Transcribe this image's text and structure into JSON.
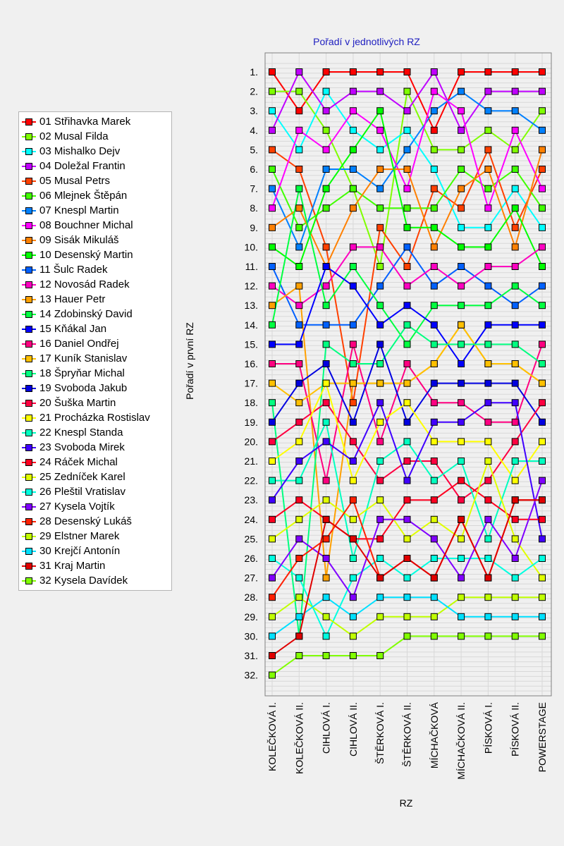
{
  "chart_data": {
    "type": "line",
    "title": "Pořadí v jednotlivých RZ",
    "xlabel": "RZ",
    "ylabel": "Pořadí v první RZ",
    "categories": [
      "KOLEČKOVÁ I.",
      "KOLEČKOVÁ II.",
      "CIHLOVÁ I.",
      "CIHLOVÁ II.",
      "ŠTĚRKOVÁ I.",
      "ŠTĚRKOVÁ II.",
      "MÍCHAČKOVÁ",
      "MÍCHAČKOVÁ II.",
      "PÍSKOVÁ I.",
      "PÍSKOVÁ II.",
      "POWERSTAGE"
    ],
    "y_ticks": [
      "1.",
      "2.",
      "3.",
      "4.",
      "5.",
      "6.",
      "7.",
      "8.",
      "9.",
      "10.",
      "11.",
      "12.",
      "13.",
      "14.",
      "15.",
      "16.",
      "17.",
      "18.",
      "19.",
      "20.",
      "21.",
      "22.",
      "23.",
      "24.",
      "25.",
      "26.",
      "27.",
      "28.",
      "29.",
      "30.",
      "31.",
      "32."
    ],
    "ylim": [
      1,
      32
    ],
    "y_inverted": true,
    "grid": true,
    "legend_position": "left",
    "series": [
      {
        "name": "01 Střihavka Marek",
        "color": "#ff0000",
        "values": [
          1,
          3,
          1,
          1,
          1,
          1,
          4,
          1,
          1,
          1,
          1
        ]
      },
      {
        "name": "02 Musal Filda",
        "color": "#7fff00",
        "values": [
          2,
          2,
          4,
          7,
          11,
          2,
          5,
          5,
          4,
          5,
          3
        ]
      },
      {
        "name": "03 Mishalko Dejv",
        "color": "#00ffff",
        "values": [
          3,
          5,
          2,
          4,
          5,
          4,
          6,
          9,
          9,
          7,
          9
        ]
      },
      {
        "name": "04 Doležal Frantin",
        "color": "#bf00ff",
        "values": [
          4,
          1,
          3,
          2,
          2,
          3,
          1,
          4,
          2,
          2,
          2
        ]
      },
      {
        "name": "05 Musal Petrs",
        "color": "#ff4000",
        "values": [
          5,
          6,
          10,
          18,
          9,
          11,
          7,
          8,
          5,
          9,
          6
        ]
      },
      {
        "name": "06 Mlejnek Štěpán",
        "color": "#40ff00",
        "values": [
          6,
          9,
          8,
          7,
          8,
          8,
          8,
          6,
          7,
          6,
          8
        ]
      },
      {
        "name": "07 Knespl Martin",
        "color": "#0080ff",
        "values": [
          7,
          10,
          6,
          6,
          7,
          5,
          3,
          2,
          3,
          3,
          4
        ]
      },
      {
        "name": "08 Bouchner Michal",
        "color": "#ff00ff",
        "values": [
          8,
          4,
          5,
          3,
          4,
          7,
          2,
          3,
          8,
          4,
          7
        ]
      },
      {
        "name": "09 Sisák Mikuláš",
        "color": "#ff8000",
        "values": [
          9,
          8,
          11,
          8,
          6,
          6,
          10,
          7,
          6,
          10,
          5
        ]
      },
      {
        "name": "10 Desenský Martin",
        "color": "#00ff00",
        "values": [
          10,
          11,
          7,
          5,
          3,
          9,
          9,
          10,
          10,
          8,
          11
        ]
      },
      {
        "name": "11 Šulc Radek",
        "color": "#0060ff",
        "values": [
          11,
          14,
          14,
          14,
          12,
          10,
          12,
          11,
          12,
          13,
          12
        ]
      },
      {
        "name": "12 Novosád Radek",
        "color": "#ff00c0",
        "values": [
          12,
          13,
          12,
          10,
          10,
          12,
          11,
          12,
          11,
          11,
          10
        ]
      },
      {
        "name": "13 Hauer Petr",
        "color": "#ffa000",
        "values": [
          13,
          12,
          27,
          17,
          17,
          17,
          16,
          14,
          16,
          16,
          17
        ]
      },
      {
        "name": "14 Zdobinský David",
        "color": "#00ff40",
        "values": [
          14,
          7,
          13,
          11,
          13,
          15,
          13,
          13,
          13,
          12,
          13
        ]
      },
      {
        "name": "15 Kňákal Jan",
        "color": "#0000ff",
        "values": [
          15,
          15,
          11,
          12,
          14,
          13,
          14,
          16,
          14,
          14,
          14
        ]
      },
      {
        "name": "16 Daniel Ondřej",
        "color": "#ff0080",
        "values": [
          16,
          16,
          22,
          15,
          20,
          16,
          18,
          18,
          19,
          19,
          15
        ]
      },
      {
        "name": "17 Kuník Stanislav",
        "color": "#ffc000",
        "values": [
          17,
          18,
          17,
          17,
          17,
          17,
          16,
          14,
          16,
          16,
          17
        ]
      },
      {
        "name": "18 Špryňar Michal",
        "color": "#00ff80",
        "values": [
          18,
          30,
          15,
          16,
          16,
          14,
          15,
          15,
          15,
          15,
          16
        ]
      },
      {
        "name": "19 Svoboda Jakub",
        "color": "#0000e0",
        "values": [
          19,
          17,
          16,
          19,
          15,
          19,
          17,
          17,
          17,
          17,
          19
        ]
      },
      {
        "name": "20 Šuška Martin",
        "color": "#ff0040",
        "values": [
          20,
          19,
          18,
          20,
          22,
          21,
          21,
          23,
          22,
          20,
          18
        ]
      },
      {
        "name": "21 Procházka Rostislav",
        "color": "#ffff00",
        "values": [
          21,
          20,
          17,
          22,
          19,
          18,
          20,
          20,
          20,
          22,
          20
        ]
      },
      {
        "name": "22 Knespl Standa",
        "color": "#00ffc0",
        "values": [
          22,
          22,
          19,
          26,
          21,
          20,
          22,
          21,
          25,
          21,
          21
        ]
      },
      {
        "name": "23 Svoboda Mirek",
        "color": "#4000ff",
        "values": [
          23,
          21,
          20,
          21,
          18,
          22,
          19,
          19,
          18,
          18,
          25
        ]
      },
      {
        "name": "24 Ráček Michal",
        "color": "#ff0020",
        "values": [
          24,
          23,
          24,
          25,
          25,
          23,
          23,
          22,
          23,
          24,
          24
        ]
      },
      {
        "name": "25 Zedníček Karel",
        "color": "#e0ff00",
        "values": [
          25,
          24,
          23,
          24,
          23,
          25,
          24,
          25,
          21,
          25,
          27
        ]
      },
      {
        "name": "26 Pleštil Vratislav",
        "color": "#00ffe0",
        "values": [
          26,
          27,
          30,
          27,
          26,
          27,
          26,
          26,
          26,
          27,
          26
        ]
      },
      {
        "name": "27 Kysela Vojtík",
        "color": "#8000ff",
        "values": [
          27,
          25,
          26,
          28,
          24,
          24,
          25,
          27,
          24,
          26,
          22
        ]
      },
      {
        "name": "28 Desenský Lukáš",
        "color": "#ff2000",
        "values": [
          28,
          26,
          25,
          23,
          27,
          26,
          27,
          24,
          27,
          23,
          23
        ]
      },
      {
        "name": "29 Elstner Marek",
        "color": "#c0ff00",
        "values": [
          29,
          28,
          29,
          30,
          29,
          29,
          29,
          28,
          28,
          28,
          28
        ]
      },
      {
        "name": "30 Krejčí Antonín",
        "color": "#00e0ff",
        "values": [
          30,
          29,
          28,
          29,
          28,
          28,
          28,
          29,
          29,
          29,
          29
        ]
      },
      {
        "name": "31 Kraj Martin",
        "color": "#e00000",
        "values": [
          31,
          30,
          24,
          25,
          27,
          26,
          27,
          24,
          27,
          23,
          23
        ]
      },
      {
        "name": "32 Kysela Davídek",
        "color": "#80ff00",
        "values": [
          32,
          31,
          31,
          31,
          31,
          30,
          30,
          30,
          30,
          30,
          30
        ]
      }
    ]
  }
}
